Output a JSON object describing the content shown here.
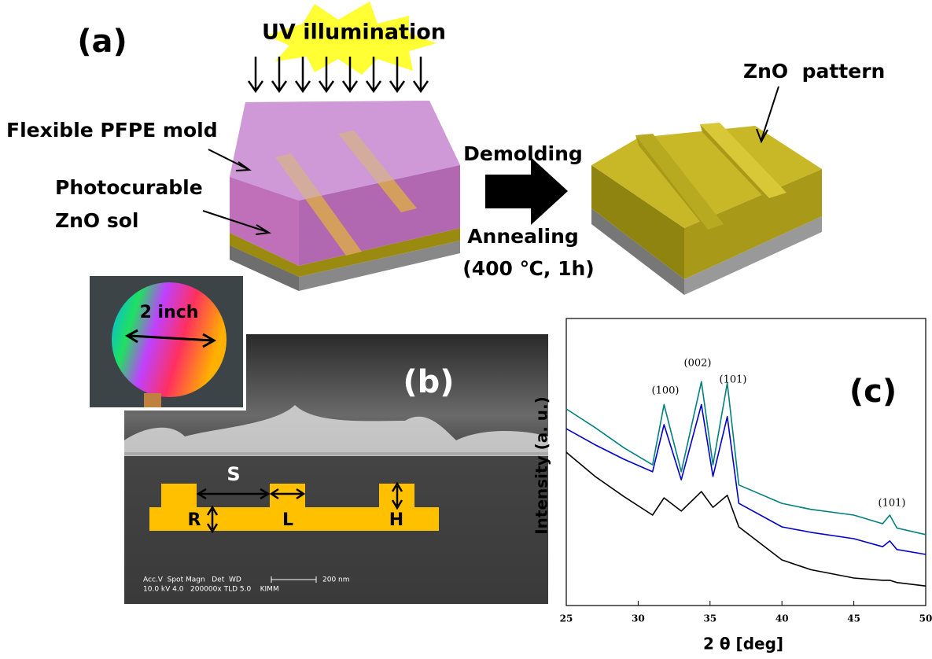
{
  "panel_a": {
    "label": "(a)",
    "uv": "UV illumination",
    "mold": "Flexible PFPE mold",
    "sol": [
      "Photocurable",
      "ZnO sol"
    ],
    "demolding": "Demolding",
    "annealing": [
      "Annealing",
      "(400 ℃, 1h)"
    ],
    "pattern": "ZnO  pattern"
  },
  "panel_b": {
    "label": "(b)",
    "wafer": "2 inch",
    "dims": [
      "S",
      "R",
      "L",
      "H"
    ],
    "sem_caption": [
      "Acc.V  Spot Magn   Det  WD",
      "10.0 kV 4.0   200000x TLD 5.0    KIMM"
    ],
    "scale_bar": "200 nm"
  },
  "chart_data": {
    "type": "line",
    "panel_label": "(c)",
    "x_label": "2 θ [deg]",
    "y_label": "Intensity (a. u.)",
    "annotations": [
      "(100)",
      "(002)",
      "(101)",
      "(101)"
    ],
    "x": [
      25,
      27,
      29,
      31,
      31.8,
      33,
      34.4,
      35.2,
      36.2,
      37,
      40,
      42,
      45,
      47,
      47.5,
      48,
      50
    ],
    "series": [
      {
        "color": "#008080",
        "values": [
          68.5,
          62,
          55,
          49,
          70,
          46.6,
          78,
          49,
          77.5,
          42,
          35.6,
          33.5,
          31.5,
          28.5,
          31.5,
          27,
          24.7
        ]
      },
      {
        "color": "#0000cc",
        "values": [
          61.6,
          56,
          51,
          46.6,
          63,
          43.8,
          70,
          45,
          65.8,
          35.6,
          27.4,
          25.5,
          23.3,
          20.5,
          22.5,
          19.5,
          17.8
        ]
      },
      {
        "color": "#000000",
        "values": [
          53.4,
          45,
          38,
          31.5,
          37.5,
          32.9,
          39.7,
          34.2,
          38.4,
          27.4,
          15.9,
          12.5,
          9.6,
          8.8,
          8.8,
          8,
          6.8
        ]
      }
    ],
    "xlim": [
      25,
      50
    ],
    "xticks": [
      25,
      30,
      35,
      40,
      45,
      50
    ],
    "ylim": [
      0,
      100
    ]
  }
}
